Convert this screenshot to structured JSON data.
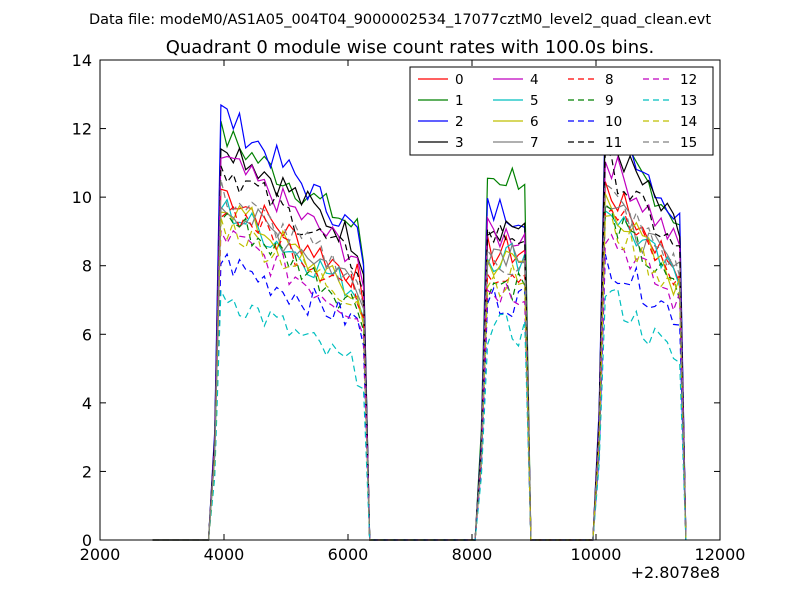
{
  "header": {
    "data_file": "Data file: modeM0/AS1A05_004T04_9000002534_17077cztM0_level2_quad_clean.evt"
  },
  "chart_data": {
    "type": "line",
    "title": "Quadrant 0 module wise count rates with 100.0s bins.",
    "xlabel": "",
    "ylabel": "",
    "x_offset_label": "+2.8078e8",
    "xlim": [
      2000,
      12000
    ],
    "ylim": [
      0,
      14
    ],
    "xticks": [
      2000,
      4000,
      6000,
      8000,
      10000,
      12000
    ],
    "yticks": [
      0,
      2,
      4,
      6,
      8,
      10,
      12,
      14
    ],
    "grid": false,
    "legend_position": "top-right",
    "segments": [
      {
        "start": 3900,
        "end": 6200
      },
      {
        "start": 8200,
        "end": 8850
      },
      {
        "start": 10150,
        "end": 11350
      }
    ],
    "series": [
      {
        "name": "0",
        "color": "#ff0000",
        "dash": "solid",
        "peak": 10.3,
        "tail": 7.6,
        "gap": 8.4
      },
      {
        "name": "1",
        "color": "#008000",
        "dash": "solid",
        "peak": 11.9,
        "tail": 9.0,
        "gap": 10.6
      },
      {
        "name": "2",
        "color": "#0000ff",
        "dash": "solid",
        "peak": 12.6,
        "tail": 8.9,
        "gap": 9.6
      },
      {
        "name": "3",
        "color": "#000000",
        "dash": "solid",
        "peak": 11.8,
        "tail": 8.6,
        "gap": 9.2
      },
      {
        "name": "4",
        "color": "#bf00bf",
        "dash": "solid",
        "peak": 11.2,
        "tail": 8.2,
        "gap": 8.9
      },
      {
        "name": "5",
        "color": "#00bfbf",
        "dash": "solid",
        "peak": 9.8,
        "tail": 7.2,
        "gap": 8.3
      },
      {
        "name": "6",
        "color": "#bfbf00",
        "dash": "solid",
        "peak": 10.0,
        "tail": 7.0,
        "gap": 8.1
      },
      {
        "name": "7",
        "color": "#808080",
        "dash": "solid",
        "peak": 9.9,
        "tail": 7.5,
        "gap": 8.5
      },
      {
        "name": "8",
        "color": "#ff0000",
        "dash": "dashed",
        "peak": 9.9,
        "tail": 7.2,
        "gap": 7.9
      },
      {
        "name": "9",
        "color": "#008000",
        "dash": "dashed",
        "peak": 9.6,
        "tail": 6.8,
        "gap": 7.5
      },
      {
        "name": "10",
        "color": "#0000ff",
        "dash": "dashed",
        "peak": 8.2,
        "tail": 6.3,
        "gap": 7.0
      },
      {
        "name": "11",
        "color": "#000000",
        "dash": "dashed",
        "peak": 11.0,
        "tail": 8.0,
        "gap": 8.9
      },
      {
        "name": "12",
        "color": "#bf00bf",
        "dash": "dashed",
        "peak": 9.0,
        "tail": 6.6,
        "gap": 7.3
      },
      {
        "name": "13",
        "color": "#00bfbf",
        "dash": "dashed",
        "peak": 7.3,
        "tail": 4.9,
        "gap": 6.1
      },
      {
        "name": "14",
        "color": "#bfbf00",
        "dash": "dashed",
        "peak": 9.3,
        "tail": 7.0,
        "gap": 7.6
      },
      {
        "name": "15",
        "color": "#808080",
        "dash": "dashed",
        "peak": 10.2,
        "tail": 7.6,
        "gap": 8.1
      }
    ]
  }
}
